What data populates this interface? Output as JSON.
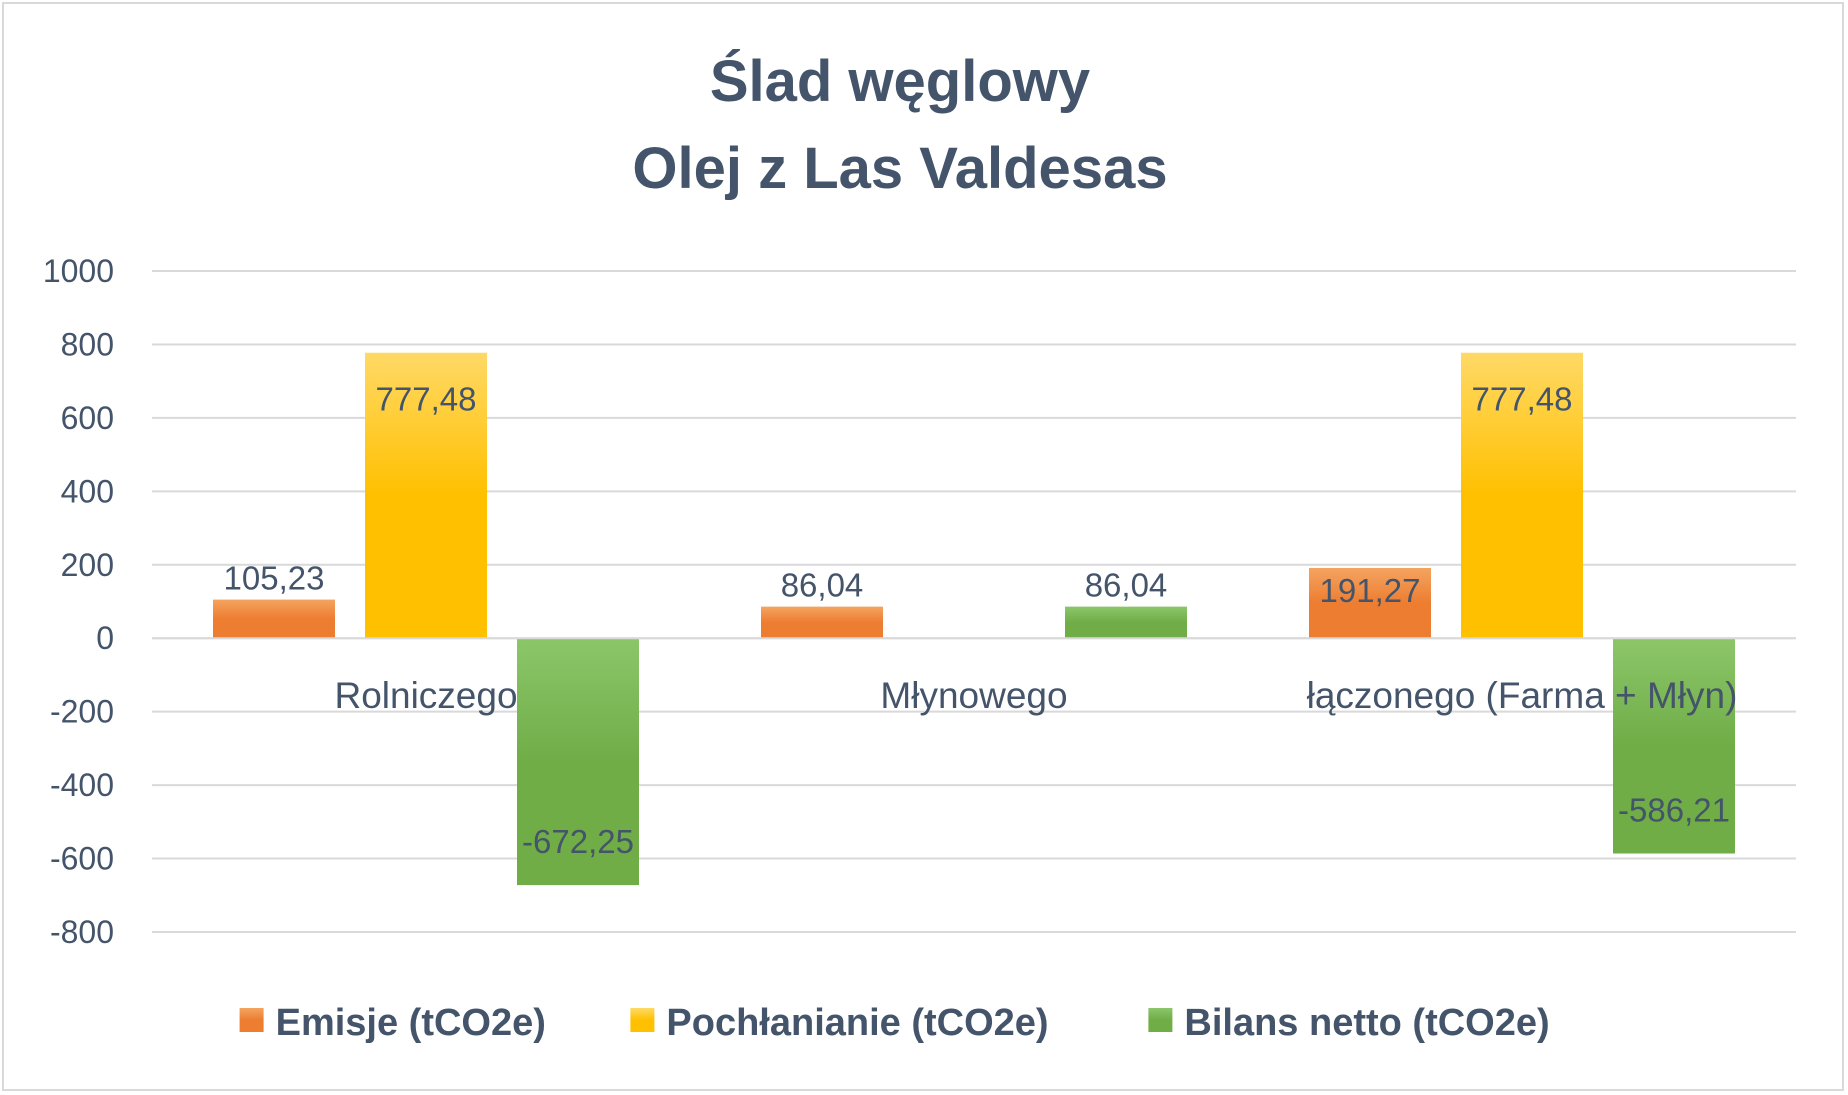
{
  "chart_data": {
    "type": "bar",
    "title_lines": [
      "Ślad węglowy",
      "Olej z Las Valdesas"
    ],
    "categories": [
      "Rolniczego",
      "Młynowego",
      "łączonego (Farma + Młyn)"
    ],
    "series": [
      {
        "name": "Emisje (tCO2e)",
        "values": [
          105.23,
          86.04,
          191.27
        ],
        "labels": [
          "105,23",
          "86,04",
          "191,27"
        ],
        "color": "#ed7d31",
        "color_light": "#f4a460"
      },
      {
        "name": "Pochłanianie (tCO2e)",
        "values": [
          777.48,
          null,
          777.48
        ],
        "labels": [
          "777,48",
          "",
          "777,48"
        ],
        "color": "#ffc000",
        "color_light": "#ffd966"
      },
      {
        "name": "Bilans netto (tCO2e)",
        "values": [
          -672.25,
          86.04,
          -586.21
        ],
        "labels": [
          "-672,25",
          "86,04",
          "-586,21"
        ],
        "color": "#70ad47",
        "color_light": "#8cc66a"
      }
    ],
    "y_ticks": [
      "1000",
      "800",
      "600",
      "400",
      "200",
      "0",
      "-200",
      "-400",
      "-600",
      "-800"
    ],
    "y_tick_values": [
      1000,
      800,
      600,
      400,
      200,
      0,
      -200,
      -400,
      -600,
      -800
    ],
    "ylim": [
      -800,
      1000
    ],
    "grid": true,
    "legend": "bottom"
  }
}
